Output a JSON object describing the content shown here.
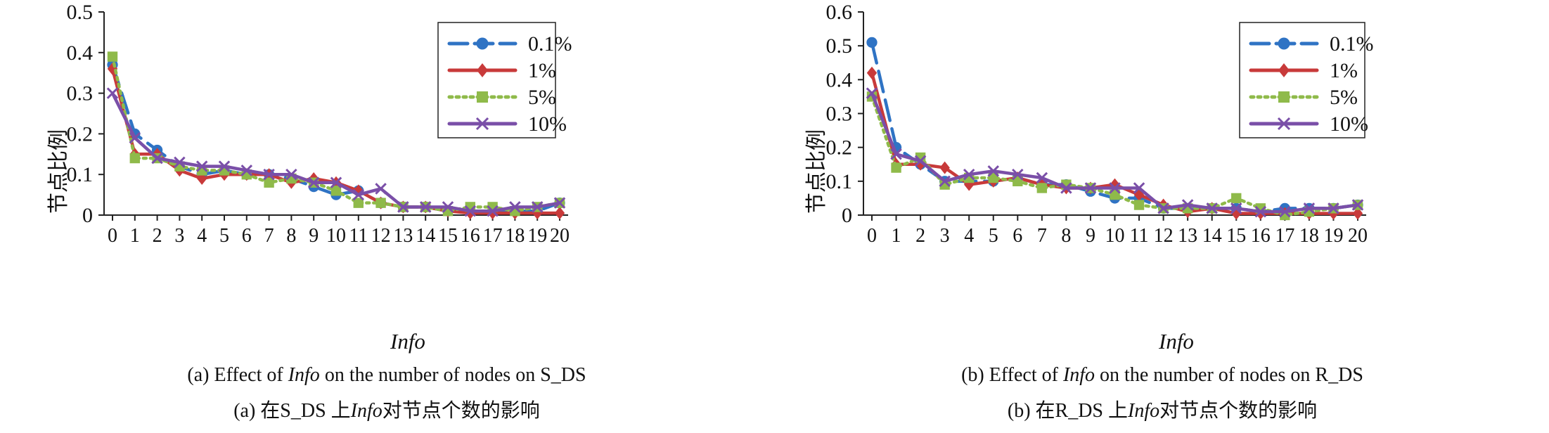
{
  "chart_data": [
    {
      "type": "line",
      "ylabel": "节点比例",
      "xlabel": "Info",
      "categories": [
        "0",
        "1",
        "2",
        "3",
        "4",
        "5",
        "6",
        "7",
        "8",
        "9",
        "10",
        "11",
        "12",
        "13",
        "14",
        "15",
        "16",
        "17",
        "18",
        "19",
        "20"
      ],
      "ylim": [
        0,
        0.5
      ],
      "yticks": [
        "0",
        "0.1",
        "0.2",
        "0.3",
        "0.4",
        "0.5"
      ],
      "grid": false,
      "legend_position": "top-right",
      "caption_en_prefix": "(a) Effect of ",
      "caption_en_italic": "Info",
      "caption_en_suffix": " on the number of nodes on S_DS",
      "caption_zh_prefix": "(a) 在S_DS 上",
      "caption_zh_italic": "Info",
      "caption_zh_suffix": "对节点个数的影响",
      "series": [
        {
          "name": "0.1%",
          "color": "#2f73c4",
          "marker": "circle",
          "dash": "long-dash",
          "values": [
            0.37,
            0.2,
            0.16,
            0.12,
            0.1,
            0.11,
            0.1,
            0.1,
            0.09,
            0.07,
            0.05,
            0.06,
            0.03,
            0.02,
            0.02,
            0.01,
            0.01,
            0.01,
            0.01,
            0.01,
            0.03
          ]
        },
        {
          "name": "1%",
          "color": "#c83a3a",
          "marker": "diamond",
          "dash": "solid",
          "values": [
            0.36,
            0.15,
            0.15,
            0.11,
            0.09,
            0.1,
            0.1,
            0.1,
            0.08,
            0.09,
            0.08,
            0.06,
            0.03,
            0.02,
            0.02,
            0.01,
            0.005,
            0.005,
            0.005,
            0.005,
            0.005
          ]
        },
        {
          "name": "5%",
          "color": "#8fba4a",
          "marker": "square",
          "dash": "dotted",
          "values": [
            0.39,
            0.14,
            0.14,
            0.12,
            0.11,
            0.11,
            0.1,
            0.08,
            0.09,
            0.08,
            0.06,
            0.03,
            0.03,
            0.02,
            0.02,
            0.01,
            0.02,
            0.02,
            0.01,
            0.02,
            0.03
          ]
        },
        {
          "name": "10%",
          "color": "#7a4fa8",
          "marker": "x",
          "dash": "solid",
          "values": [
            0.3,
            0.19,
            0.14,
            0.13,
            0.12,
            0.12,
            0.11,
            0.1,
            0.1,
            0.08,
            0.08,
            0.05,
            0.065,
            0.02,
            0.02,
            0.02,
            0.01,
            0.01,
            0.02,
            0.02,
            0.03
          ]
        }
      ]
    },
    {
      "type": "line",
      "ylabel": "节点比例",
      "xlabel": "Info",
      "categories": [
        "0",
        "1",
        "2",
        "3",
        "4",
        "5",
        "6",
        "7",
        "8",
        "9",
        "10",
        "11",
        "12",
        "13",
        "14",
        "15",
        "16",
        "17",
        "18",
        "19",
        "20"
      ],
      "ylim": [
        0,
        0.6
      ],
      "yticks": [
        "0",
        "0.1",
        "0.2",
        "0.3",
        "0.4",
        "0.5",
        "0.6"
      ],
      "grid": false,
      "legend_position": "top-right",
      "caption_en_prefix": "(b) Effect of ",
      "caption_en_italic": "Info",
      "caption_en_suffix": " on the number of nodes on R_DS",
      "caption_zh_prefix": "(b) 在R_DS 上",
      "caption_zh_italic": "Info",
      "caption_zh_suffix": "对节点个数的影响",
      "series": [
        {
          "name": "0.1%",
          "color": "#2f73c4",
          "marker": "circle",
          "dash": "long-dash",
          "values": [
            0.51,
            0.2,
            0.15,
            0.1,
            0.1,
            0.1,
            0.11,
            0.09,
            0.09,
            0.07,
            0.05,
            0.05,
            0.02,
            0.02,
            0.02,
            0.02,
            0.01,
            0.02,
            0.02,
            0.02,
            0.03
          ]
        },
        {
          "name": "1%",
          "color": "#c83a3a",
          "marker": "diamond",
          "dash": "solid",
          "values": [
            0.42,
            0.15,
            0.15,
            0.14,
            0.09,
            0.1,
            0.11,
            0.09,
            0.08,
            0.08,
            0.09,
            0.06,
            0.03,
            0.01,
            0.02,
            0.005,
            0.005,
            0.005,
            0.005,
            0.005,
            0.005
          ]
        },
        {
          "name": "5%",
          "color": "#8fba4a",
          "marker": "square",
          "dash": "dotted",
          "values": [
            0.35,
            0.14,
            0.17,
            0.09,
            0.11,
            0.11,
            0.1,
            0.08,
            0.09,
            0.08,
            0.06,
            0.03,
            0.02,
            0.02,
            0.02,
            0.05,
            0.02,
            0.0,
            0.01,
            0.02,
            0.03
          ]
        },
        {
          "name": "10%",
          "color": "#7a4fa8",
          "marker": "x",
          "dash": "solid",
          "values": [
            0.36,
            0.18,
            0.16,
            0.1,
            0.12,
            0.13,
            0.12,
            0.11,
            0.08,
            0.08,
            0.08,
            0.08,
            0.02,
            0.03,
            0.02,
            0.02,
            0.01,
            0.01,
            0.02,
            0.02,
            0.03
          ]
        }
      ]
    }
  ]
}
